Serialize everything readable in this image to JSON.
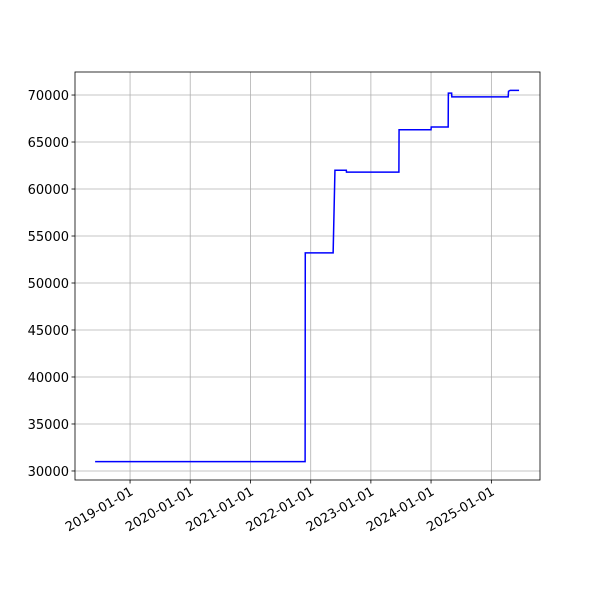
{
  "chart_data": {
    "type": "line",
    "x": [
      "2018-06-03",
      "2021-11-28",
      "2021-11-29",
      "2022-05-17",
      "2022-05-28",
      "2022-08-05",
      "2022-08-06",
      "2023-06-20",
      "2023-06-21",
      "2024-01-01",
      "2024-01-02",
      "2024-04-14",
      "2024-04-15",
      "2024-05-05",
      "2024-05-06",
      "2025-04-13",
      "2025-04-15",
      "2025-04-25",
      "2025-06-18"
    ],
    "series": [
      {
        "color": "#0000ff",
        "values": [
          31000,
          31000,
          53200,
          53200,
          62000,
          62000,
          61800,
          61800,
          66300,
          66300,
          66600,
          66600,
          70200,
          70200,
          69800,
          69800,
          70400,
          70500,
          70500
        ]
      }
    ],
    "xlim": [
      "2018-02-01",
      "2025-10-23"
    ],
    "xticks": [
      "2019-01-01",
      "2020-01-01",
      "2021-01-01",
      "2022-01-01",
      "2023-01-01",
      "2024-01-01",
      "2025-01-01"
    ],
    "ylim": [
      29040,
      72450
    ],
    "yticks": [
      30000,
      35000,
      40000,
      45000,
      50000,
      55000,
      60000,
      65000,
      70000
    ],
    "grid": true
  }
}
